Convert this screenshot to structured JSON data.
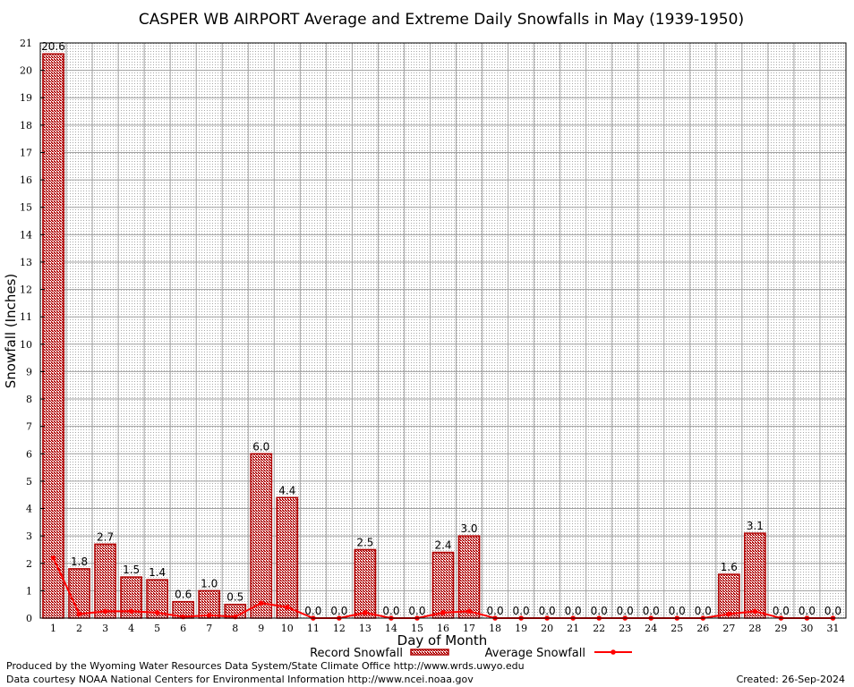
{
  "chart_data": {
    "type": "bar",
    "title": "CASPER WB AIRPORT Average and Extreme Daily Snowfalls in May (1939-1950)",
    "xlabel": "Day of Month",
    "ylabel": "Snowfall (Inches)",
    "ylim": [
      0,
      21
    ],
    "yticks": [
      "0",
      "1",
      "2",
      "3",
      "4",
      "5",
      "6",
      "7",
      "8",
      "9",
      "10",
      "11",
      "12",
      "13",
      "14",
      "15",
      "16",
      "17",
      "18",
      "19",
      "20",
      "21"
    ],
    "categories": [
      "1",
      "2",
      "3",
      "4",
      "5",
      "6",
      "7",
      "8",
      "9",
      "10",
      "11",
      "12",
      "13",
      "14",
      "15",
      "16",
      "17",
      "18",
      "19",
      "20",
      "21",
      "22",
      "23",
      "24",
      "25",
      "26",
      "27",
      "28",
      "29",
      "30",
      "31"
    ],
    "grid": true,
    "legend_position": "bottom",
    "series": [
      {
        "name": "Record Snowfall",
        "kind": "bar",
        "color": "#b00000",
        "values": [
          20.6,
          1.8,
          2.7,
          1.5,
          1.4,
          0.6,
          1.0,
          0.5,
          6.0,
          4.4,
          0.0,
          0.0,
          2.5,
          0.0,
          0.0,
          2.4,
          3.0,
          0.0,
          0.0,
          0.0,
          0.0,
          0.0,
          0.0,
          0.0,
          0.0,
          0.0,
          1.6,
          3.1,
          0.0,
          0.0,
          0.0
        ],
        "labels": [
          "20.6",
          "1.8",
          "2.7",
          "1.5",
          "1.4",
          "0.6",
          "1.0",
          "0.5",
          "6.0",
          "4.4",
          "0.0",
          "0.0",
          "2.5",
          "0.0",
          "0.0",
          "2.4",
          "3.0",
          "0.0",
          "0.0",
          "0.0",
          "0.0",
          "0.0",
          "0.0",
          "0.0",
          "0.0",
          "0.0",
          "1.6",
          "3.1",
          "0.0",
          "0.0",
          "0.0"
        ]
      },
      {
        "name": "Average Snowfall",
        "kind": "line",
        "color": "#ff0000",
        "values": [
          2.2,
          0.15,
          0.25,
          0.25,
          0.2,
          0.05,
          0.1,
          0.05,
          0.55,
          0.4,
          0.0,
          0.0,
          0.2,
          0.0,
          0.0,
          0.2,
          0.25,
          0.0,
          0.0,
          0.0,
          0.0,
          0.0,
          0.0,
          0.0,
          0.0,
          0.0,
          0.15,
          0.25,
          0.0,
          0.0,
          0.0
        ]
      }
    ]
  },
  "footer": {
    "produced_by": "Produced by the Wyoming Water Resources Data System/State Climate Office http://www.wrds.uwyo.edu",
    "courtesy": "Data courtesy NOAA National Centers for Environmental Information http://www.ncei.noaa.gov",
    "created": "Created:  26-Sep-2024"
  }
}
